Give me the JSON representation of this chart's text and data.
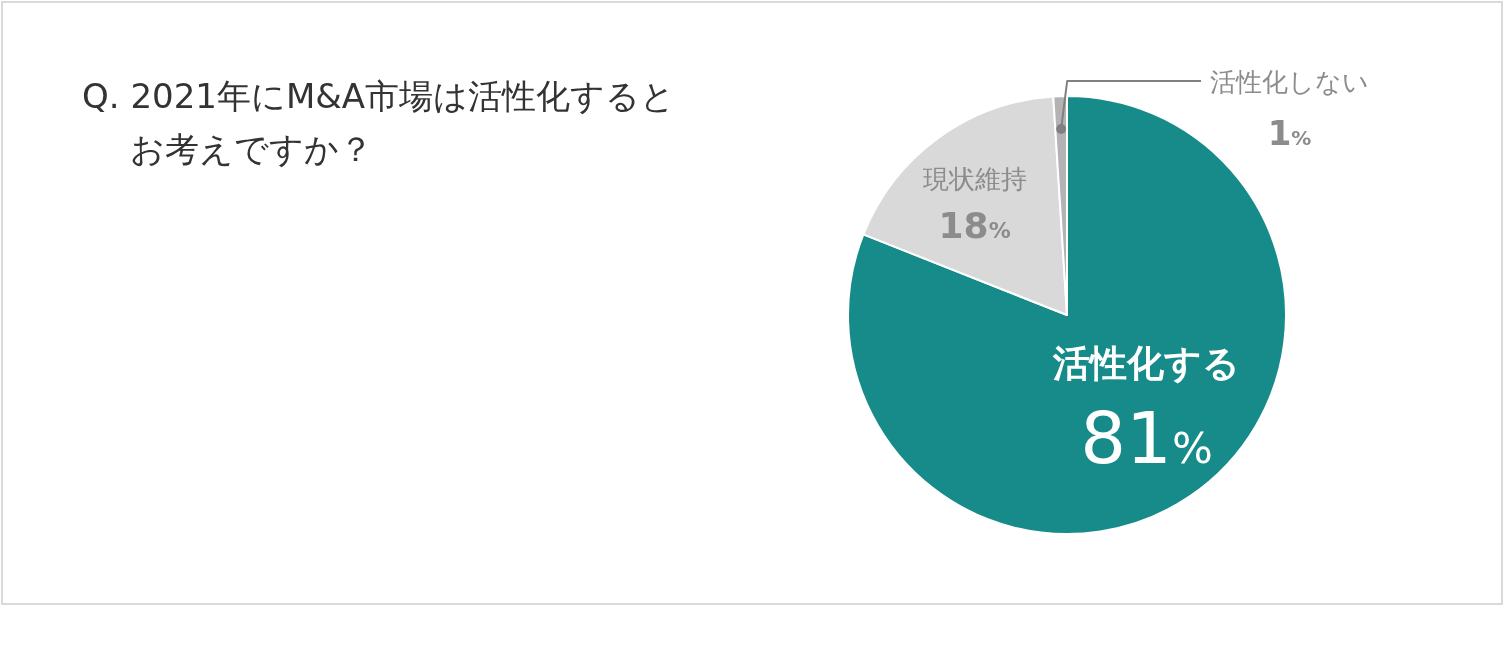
{
  "chart_data": {
    "type": "pie",
    "title": "Q. 2021年にM&A市場は活性化するとお考えですか？",
    "categories": [
      "活性化する",
      "現状維持",
      "活性化しない"
    ],
    "values": [
      81,
      18,
      1
    ],
    "colors": [
      "#178b8a",
      "#d9d9d9",
      "#b3b3b3"
    ],
    "value_labels": [
      "81%",
      "18%",
      "1%"
    ]
  }
}
